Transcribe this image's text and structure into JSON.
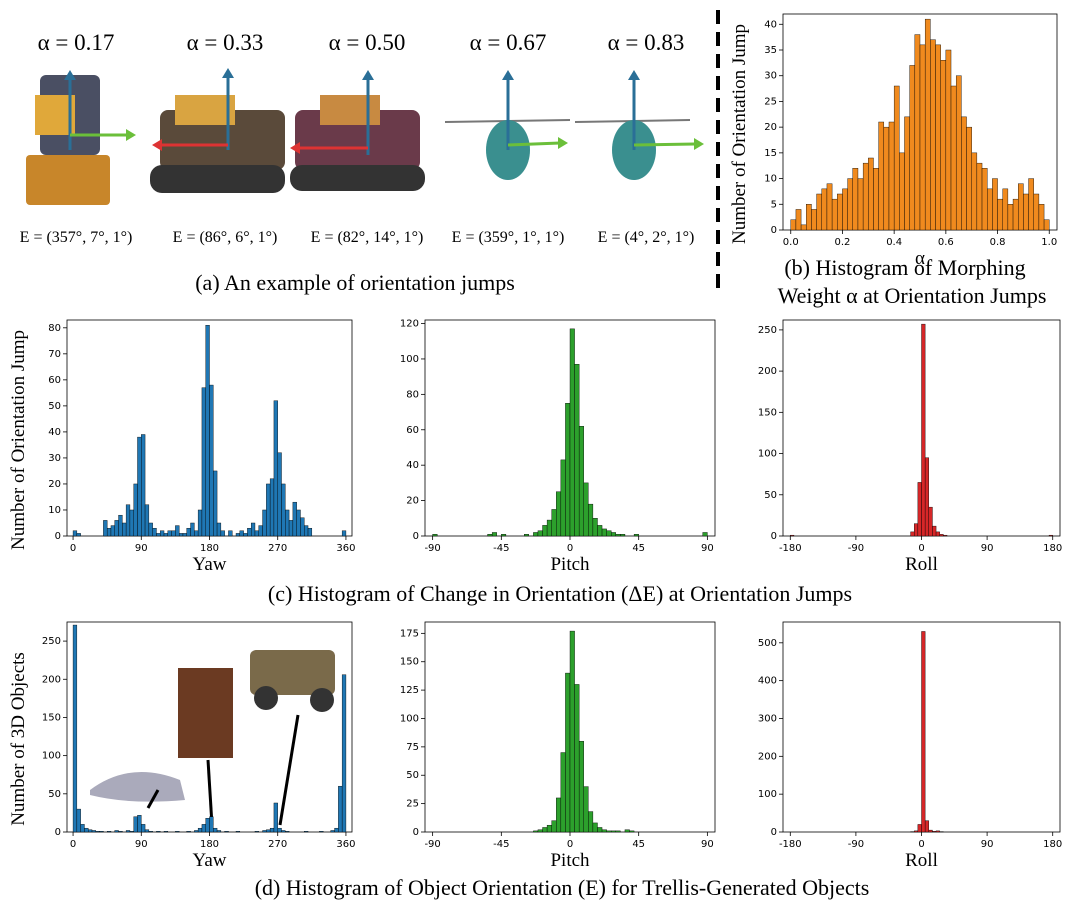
{
  "panel_a": {
    "alphas": [
      "α = 0.17",
      "α = 0.33",
      "α = 0.50",
      "α = 0.67",
      "α = 0.83"
    ],
    "orientations": [
      "E = (357°, 7°, 1°)",
      "E = (86°, 6°, 1°)",
      "E = (82°, 14°, 1°)",
      "E = (359°, 1°, 1°)",
      "E = (4°, 2°, 1°)"
    ]
  },
  "captions": {
    "a": "(a) An example of orientation jumps",
    "b": [
      "(b) Histogram of Morphing",
      "Weight α at Orientation Jumps"
    ],
    "c": "(c) Histogram of Change in Orientation (ΔE) at Orientation Jumps",
    "d": "(d) Histogram of Object Orientation (E) for Trellis-Generated Objects"
  },
  "chart_data": [
    {
      "type": "histogram",
      "xlabel": "α",
      "ylabel": "Number of Orientation Jump",
      "color": "#f08a1e",
      "bins": [
        0,
        0.02,
        0.04,
        0.06,
        0.08,
        0.1,
        0.12,
        0.14,
        0.16,
        0.18,
        0.2,
        0.22,
        0.24,
        0.26,
        0.28,
        0.3,
        0.32,
        0.34,
        0.36,
        0.38,
        0.4,
        0.42,
        0.44,
        0.46,
        0.48,
        0.5,
        0.52,
        0.54,
        0.56,
        0.58,
        0.6,
        0.62,
        0.64,
        0.66,
        0.68,
        0.7,
        0.72,
        0.74,
        0.76,
        0.78,
        0.8,
        0.82,
        0.84,
        0.86,
        0.88,
        0.9,
        0.92,
        0.94,
        0.96,
        0.98,
        1.0
      ],
      "values": [
        2,
        4,
        1,
        5,
        4,
        7,
        8,
        9,
        6,
        7,
        8,
        10,
        12,
        10,
        13,
        14,
        12,
        21,
        20,
        21,
        28,
        15,
        22,
        32,
        38,
        36,
        41,
        37,
        36,
        33,
        35,
        28,
        30,
        22,
        20,
        15,
        13,
        12,
        8,
        10,
        6,
        8,
        5,
        6,
        9,
        7,
        10,
        7,
        5,
        2
      ],
      "xlim": [
        -0.03,
        1.03
      ],
      "ylim": [
        0,
        42
      ],
      "xticks": [
        {
          "value": 0,
          "label": "0.0"
        },
        0.2,
        0.4,
        0.6,
        0.8,
        {
          "value": 1,
          "label": "1.0"
        }
      ],
      "yticks": [
        0,
        5,
        10,
        15,
        20,
        25,
        30,
        35,
        40
      ]
    },
    {
      "type": "histogram",
      "xlabel": "Yaw",
      "ylabel": "Number of Orientation Jump",
      "color": "#1f77b4",
      "bins": [
        0,
        5,
        10,
        15,
        20,
        25,
        30,
        35,
        40,
        45,
        50,
        55,
        60,
        65,
        70,
        75,
        80,
        85,
        90,
        95,
        100,
        105,
        110,
        115,
        120,
        125,
        130,
        135,
        140,
        145,
        150,
        155,
        160,
        165,
        170,
        175,
        180,
        185,
        190,
        195,
        200,
        205,
        210,
        215,
        220,
        225,
        230,
        235,
        240,
        245,
        250,
        255,
        260,
        265,
        270,
        275,
        280,
        285,
        290,
        295,
        300,
        305,
        310,
        315,
        320,
        325,
        330,
        335,
        340,
        345,
        350,
        355,
        360
      ],
      "values": [
        2,
        1,
        0,
        0,
        0,
        0,
        0,
        0,
        6,
        3,
        4,
        6,
        8,
        5,
        12,
        10,
        20,
        38,
        39,
        12,
        5,
        3,
        1,
        2,
        1,
        2,
        2,
        4,
        1,
        1,
        3,
        5,
        2,
        10,
        57,
        81,
        58,
        25,
        5,
        2,
        0,
        2,
        0,
        1,
        2,
        1,
        3,
        5,
        2,
        4,
        10,
        20,
        22,
        52,
        32,
        20,
        10,
        6,
        13,
        10,
        7,
        4,
        3,
        0,
        0,
        0,
        0,
        0,
        0,
        0,
        0,
        2
      ],
      "xlim": [
        -8,
        368
      ],
      "ylim": [
        0,
        83
      ],
      "xticks": [
        0,
        90,
        180,
        270,
        360
      ],
      "yticks": [
        0,
        10,
        20,
        30,
        40,
        50,
        60,
        70,
        80
      ]
    },
    {
      "type": "histogram",
      "xlabel": "Pitch",
      "color": "#2ca02c",
      "bins": [
        -90,
        -87,
        -84,
        -81,
        -78,
        -75,
        -72,
        -69,
        -66,
        -63,
        -60,
        -57,
        -54,
        -51,
        -48,
        -45,
        -42,
        -39,
        -36,
        -33,
        -30,
        -27,
        -24,
        -21,
        -18,
        -15,
        -12,
        -9,
        -6,
        -3,
        0,
        3,
        6,
        9,
        12,
        15,
        18,
        21,
        24,
        27,
        30,
        33,
        36,
        39,
        42,
        45,
        48,
        51,
        54,
        57,
        60,
        63,
        66,
        69,
        72,
        75,
        78,
        81,
        84,
        87,
        90
      ],
      "values": [
        1,
        0,
        0,
        0,
        0,
        0,
        0,
        0,
        0,
        0,
        0,
        0,
        1,
        2,
        0,
        1,
        0,
        0,
        0,
        0,
        1,
        0,
        2,
        3,
        6,
        9,
        15,
        25,
        43,
        75,
        117,
        97,
        62,
        30,
        18,
        10,
        6,
        4,
        3,
        2,
        1,
        1,
        0,
        0,
        1,
        0,
        0,
        0,
        0,
        0,
        0,
        0,
        0,
        0,
        0,
        0,
        0,
        0,
        0,
        2
      ],
      "xlim": [
        -95,
        95
      ],
      "ylim": [
        0,
        122
      ],
      "xticks": [
        -90,
        -45,
        0,
        45,
        90
      ],
      "yticks": [
        0,
        20,
        40,
        60,
        80,
        100,
        120
      ]
    },
    {
      "type": "histogram",
      "xlabel": "Roll",
      "color": "#d62728",
      "bins": [
        -180,
        -175,
        -170,
        -165,
        -160,
        -155,
        -150,
        -145,
        -140,
        -135,
        -130,
        -125,
        -120,
        -115,
        -110,
        -105,
        -100,
        -95,
        -90,
        -85,
        -80,
        -75,
        -70,
        -65,
        -60,
        -55,
        -50,
        -45,
        -40,
        -35,
        -30,
        -25,
        -20,
        -15,
        -10,
        -5,
        0,
        5,
        10,
        15,
        20,
        25,
        30,
        35,
        40,
        45,
        50,
        55,
        60,
        65,
        70,
        75,
        80,
        85,
        90,
        95,
        100,
        105,
        110,
        115,
        120,
        125,
        130,
        135,
        140,
        145,
        150,
        155,
        160,
        165,
        170,
        175,
        180
      ],
      "values": [
        1,
        0,
        0,
        0,
        0,
        0,
        0,
        0,
        0,
        0,
        0,
        0,
        0,
        0,
        0,
        0,
        0,
        0,
        0,
        0,
        0,
        0,
        0,
        0,
        0,
        0,
        0,
        0,
        0,
        0,
        0,
        0,
        0,
        5,
        15,
        65,
        257,
        95,
        35,
        12,
        5,
        2,
        1,
        0,
        0,
        0,
        0,
        0,
        0,
        0,
        0,
        0,
        0,
        0,
        0,
        0,
        0,
        0,
        0,
        0,
        0,
        0,
        0,
        0,
        0,
        0,
        0,
        0,
        0,
        0,
        0,
        1
      ],
      "xlim": [
        -190,
        190
      ],
      "ylim": [
        0,
        262
      ],
      "xticks": [
        -180,
        -90,
        0,
        90,
        180
      ],
      "yticks": [
        0,
        50,
        100,
        150,
        200,
        250
      ]
    },
    {
      "type": "histogram",
      "xlabel": "Yaw",
      "ylabel": "Number of 3D Objects",
      "color": "#1f77b4",
      "bins": [
        0,
        5,
        10,
        15,
        20,
        25,
        30,
        35,
        40,
        45,
        50,
        55,
        60,
        65,
        70,
        75,
        80,
        85,
        90,
        95,
        100,
        105,
        110,
        115,
        120,
        125,
        130,
        135,
        140,
        145,
        150,
        155,
        160,
        165,
        170,
        175,
        180,
        185,
        190,
        195,
        200,
        205,
        210,
        215,
        220,
        225,
        230,
        235,
        240,
        245,
        250,
        255,
        260,
        265,
        270,
        275,
        280,
        285,
        290,
        295,
        300,
        305,
        310,
        315,
        320,
        325,
        330,
        335,
        340,
        345,
        350,
        355,
        360
      ],
      "values": [
        271,
        30,
        10,
        5,
        3,
        2,
        1,
        1,
        0,
        1,
        0,
        2,
        1,
        0,
        2,
        1,
        20,
        22,
        10,
        3,
        1,
        0,
        1,
        0,
        1,
        0,
        0,
        1,
        0,
        0,
        1,
        0,
        2,
        5,
        10,
        18,
        20,
        5,
        2,
        0,
        1,
        0,
        0,
        1,
        0,
        0,
        0,
        0,
        1,
        0,
        2,
        3,
        5,
        38,
        5,
        2,
        1,
        0,
        0,
        0,
        0,
        1,
        0,
        0,
        0,
        1,
        0,
        0,
        2,
        5,
        60,
        206
      ],
      "xlim": [
        -8,
        368
      ],
      "ylim": [
        0,
        275
      ],
      "xticks": [
        0,
        90,
        180,
        270,
        360
      ],
      "yticks": [
        0,
        50,
        100,
        150,
        200,
        250
      ]
    },
    {
      "type": "histogram",
      "xlabel": "Pitch",
      "color": "#2ca02c",
      "bins": [
        -90,
        -87,
        -84,
        -81,
        -78,
        -75,
        -72,
        -69,
        -66,
        -63,
        -60,
        -57,
        -54,
        -51,
        -48,
        -45,
        -42,
        -39,
        -36,
        -33,
        -30,
        -27,
        -24,
        -21,
        -18,
        -15,
        -12,
        -9,
        -6,
        -3,
        0,
        3,
        6,
        9,
        12,
        15,
        18,
        21,
        24,
        27,
        30,
        33,
        36,
        39,
        42,
        45,
        48,
        51,
        54,
        57,
        60,
        63,
        66,
        69,
        72,
        75,
        78,
        81,
        84,
        87,
        90
      ],
      "values": [
        0,
        0,
        0,
        0,
        0,
        0,
        0,
        0,
        0,
        0,
        0,
        0,
        0,
        0,
        0,
        0,
        0,
        0,
        0,
        0,
        0,
        0,
        1,
        2,
        4,
        6,
        10,
        30,
        70,
        140,
        177,
        130,
        80,
        40,
        18,
        8,
        4,
        2,
        1,
        1,
        1,
        0,
        2,
        1,
        0,
        0,
        0,
        0,
        0,
        0,
        0,
        0,
        0,
        0,
        0,
        0,
        0,
        0,
        0,
        0
      ],
      "xlim": [
        -95,
        95
      ],
      "ylim": [
        0,
        185
      ],
      "xticks": [
        -90,
        -45,
        0,
        45,
        90
      ],
      "yticks": [
        0,
        25,
        50,
        75,
        100,
        125,
        150,
        175
      ]
    },
    {
      "type": "histogram",
      "xlabel": "Roll",
      "color": "#d62728",
      "bins": [
        -180,
        -175,
        -170,
        -165,
        -160,
        -155,
        -150,
        -145,
        -140,
        -135,
        -130,
        -125,
        -120,
        -115,
        -110,
        -105,
        -100,
        -95,
        -90,
        -85,
        -80,
        -75,
        -70,
        -65,
        -60,
        -55,
        -50,
        -45,
        -40,
        -35,
        -30,
        -25,
        -20,
        -15,
        -10,
        -5,
        0,
        5,
        10,
        15,
        20,
        25,
        30,
        35,
        40,
        45,
        50,
        55,
        60,
        65,
        70,
        75,
        80,
        85,
        90,
        95,
        100,
        105,
        110,
        115,
        120,
        125,
        130,
        135,
        140,
        145,
        150,
        155,
        160,
        165,
        170,
        175,
        180
      ],
      "values": [
        0,
        0,
        0,
        0,
        0,
        0,
        0,
        0,
        0,
        0,
        0,
        0,
        0,
        0,
        0,
        0,
        0,
        0,
        0,
        0,
        0,
        0,
        0,
        0,
        0,
        0,
        0,
        0,
        0,
        0,
        0,
        0,
        0,
        1,
        3,
        20,
        530,
        30,
        5,
        2,
        3,
        1,
        0,
        0,
        0,
        0,
        0,
        0,
        0,
        0,
        0,
        0,
        0,
        0,
        0,
        0,
        0,
        0,
        0,
        0,
        0,
        0,
        0,
        0,
        0,
        0,
        0,
        0,
        0,
        0,
        0,
        0
      ],
      "xlim": [
        -190,
        190
      ],
      "ylim": [
        0,
        555
      ],
      "xticks": [
        -180,
        -90,
        0,
        90,
        180
      ],
      "yticks": [
        0,
        100,
        200,
        300,
        400,
        500
      ]
    }
  ]
}
